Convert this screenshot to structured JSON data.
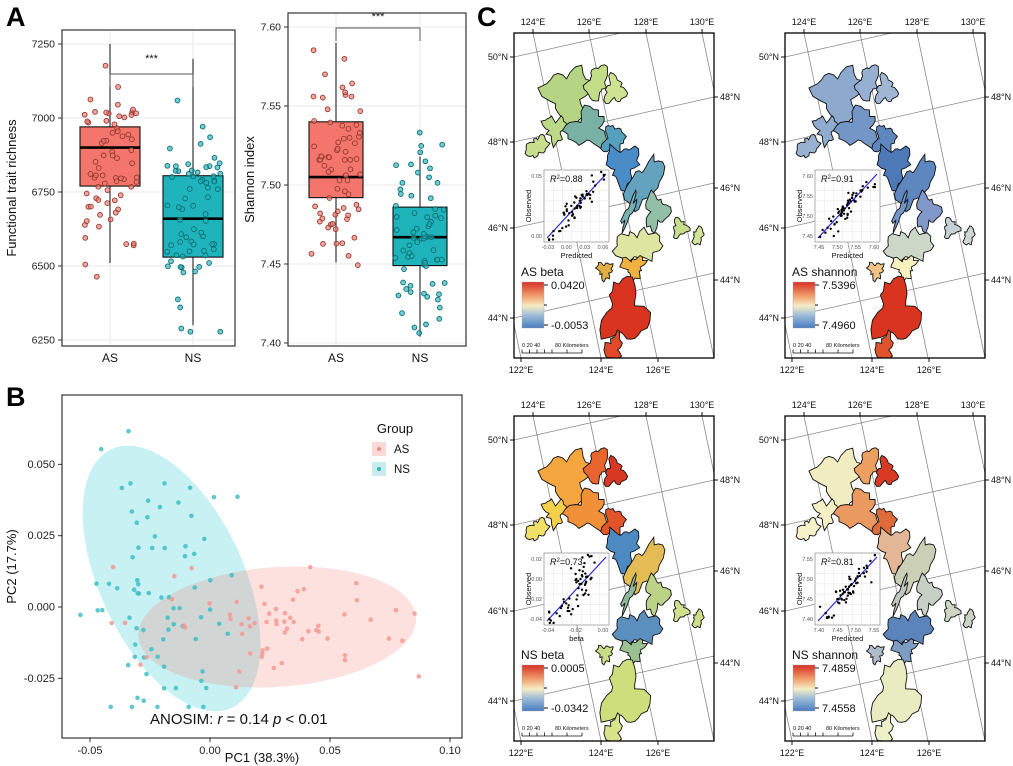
{
  "panel_labels": {
    "a": "A",
    "b": "B",
    "c": "C"
  },
  "colors": {
    "as_fill": "#f4756c",
    "as_point": "#8f3a30",
    "ns_fill": "#1fb4bb",
    "ns_point": "#0d6b70",
    "as_light": "#fbd9d6",
    "ns_light": "#c8ecee",
    "as_dot": "#f48a82",
    "ns_dot": "#2fb8be",
    "ellipse_as": "rgba(248,118,109,0.22)",
    "ellipse_ns": "rgba(0,191,196,0.22)",
    "grid": "#e9e9e9",
    "frame": "#333333",
    "graticule": "#8a8a8a",
    "map_gradient": [
      "#d73027",
      "#f09d6b",
      "#f5eec6",
      "#9fbdd8",
      "#4a7cbf"
    ],
    "inset_line": "#2626e0",
    "inset_point": "#000000"
  },
  "chart_data": {
    "boxplots": [
      {
        "ylabel": "Functional trait richness",
        "yticks": [
          "6250",
          "6500",
          "6750",
          "7000",
          "7250"
        ],
        "significance": "***",
        "categories": [
          "AS",
          "NS"
        ],
        "groups": [
          {
            "label": "AS",
            "stats": {
              "whisker_low": 6510,
              "q1": 6770,
              "median": 6900,
              "q3": 6970,
              "whisker_high": 7250
            },
            "jitter": {
              "n": 70,
              "mean": 6855,
              "sd": 165,
              "clamp": [
                6435,
                7255
              ],
              "seed": 101
            }
          },
          {
            "label": "NS",
            "stats": {
              "whisker_low": 6300,
              "q1": 6530,
              "median": 6660,
              "q3": 6805,
              "whisker_high": 7200
            },
            "jitter": {
              "n": 70,
              "mean": 6655,
              "sd": 205,
              "clamp": [
                6278,
                7205
              ],
              "seed": 202
            }
          }
        ]
      },
      {
        "ylabel": "Shannon index",
        "yticks": [
          "7.40",
          "7.45",
          "7.50",
          "7.55",
          "7.60"
        ],
        "significance": "***",
        "categories": [
          "AS",
          "NS"
        ],
        "groups": [
          {
            "label": "AS",
            "stats": {
              "whisker_low": 7.451,
              "q1": 7.492,
              "median": 7.505,
              "q3": 7.54,
              "whisker_high": 7.59
            },
            "jitter": {
              "n": 70,
              "mean": 7.513,
              "sd": 0.038,
              "clamp": [
                7.449,
                7.592
              ],
              "seed": 303
            }
          },
          {
            "label": "NS",
            "stats": {
              "whisker_low": 7.404,
              "q1": 7.449,
              "median": 7.467,
              "q3": 7.486,
              "whisker_high": 7.518
            },
            "jitter": {
              "n": 70,
              "mean": 7.468,
              "sd": 0.029,
              "clamp": [
                7.403,
                7.549
              ],
              "seed": 404
            }
          }
        ]
      }
    ],
    "pca": {
      "xlabel": "PC1 (38.3%)",
      "ylabel": "PC2 (17.7%)",
      "xticks": [
        "-0.05",
        "0.00",
        "0.05",
        "0.10"
      ],
      "yticks": [
        "-0.025",
        "0.000",
        "0.025",
        "0.050"
      ],
      "annotation": {
        "prefix": "ANOSIM:",
        "r_label": "r",
        "r_value": " = 0.14",
        "p_label": "p",
        "p_value": " < 0.01"
      },
      "legend": {
        "title": "Group",
        "items": [
          {
            "label": "AS"
          },
          {
            "label": "NS"
          }
        ]
      },
      "ellipses": [
        {
          "group": "NS",
          "cx": -0.016,
          "cy": 0.01,
          "rx": 0.03,
          "ry": 0.05,
          "rot": -25
        },
        {
          "group": "AS",
          "cx": 0.028,
          "cy": -0.007,
          "rx": 0.058,
          "ry": 0.021,
          "rot": -4
        }
      ],
      "clusters": [
        {
          "group": "NS",
          "n": 76,
          "cx": -0.021,
          "cy": 0.008,
          "sdx": 0.015,
          "sdy": 0.026,
          "clampx": [
            -0.054,
            0.034
          ],
          "clampy": [
            -0.035,
            0.068
          ],
          "seed": 777
        },
        {
          "group": "AS",
          "n": 62,
          "cx": 0.028,
          "cy": -0.007,
          "sdx": 0.027,
          "sdy": 0.01,
          "clampx": [
            -0.041,
            0.095
          ],
          "clampy": [
            -0.04,
            0.014
          ],
          "seed": 888
        }
      ]
    },
    "maps": {
      "common": {
        "top_labels": [
          "124°E",
          "126°E",
          "128°E",
          "130°E"
        ],
        "left_labels": [
          "50°N",
          "48°N",
          "46°N",
          "44°N"
        ],
        "right_labels": [
          "48°N",
          "46°N",
          "44°N"
        ],
        "bottom_labels": [
          "122°E",
          "124°E",
          "126°E"
        ],
        "scalebar": {
          "left_text": "0 20 40",
          "right_text": "80 Kilometers"
        },
        "inset_ylabel": "Observed"
      },
      "items": [
        {
          "name": "as-beta",
          "legend": {
            "title": "AS beta",
            "max": "0.0420",
            "min": "-0.0053"
          },
          "r2": "0.88",
          "inset": {
            "xlabel": "Predicted",
            "xticks": [
              "-0.03",
              "0.00",
              "0.03",
              "0.06"
            ],
            "yticks": [
              "0.00",
              "0.05"
            ],
            "noise": 0.1,
            "seed": 31
          },
          "region_colors": [
            "#b5d584",
            "#c3dc87",
            "#cfe292",
            "#bcd987",
            "#c8de8d",
            "#79b2a4",
            "#55a0bd",
            "#4a8cc7",
            "#63a3bd",
            "#79b0b0",
            "#93bfa6",
            "#c6dd8f",
            "#d2e497",
            "#dde6a0",
            "#f0b23f",
            "#e3ae44",
            "#d93420",
            "#e1492a"
          ]
        },
        {
          "name": "as-shannon",
          "legend": {
            "title": "AS shannon",
            "max": "7.5396",
            "min": "7.4960"
          },
          "r2": "0.91",
          "inset": {
            "xlabel": "Predicted",
            "xticks": [
              "7.45",
              "7.50",
              "7.55",
              "7.60"
            ],
            "yticks": [
              "7.45",
              "7.50",
              "7.55",
              "7.60"
            ],
            "noise": 0.08,
            "seed": 32
          },
          "region_colors": [
            "#8ea9ce",
            "#96b0d1",
            "#9fb7d5",
            "#90abd0",
            "#99b2d2",
            "#7396c7",
            "#5f87bf",
            "#4e79b9",
            "#5f87bf",
            "#7396c7",
            "#8099ca",
            "#c6d1d5",
            "#ced8d3",
            "#ccd7c7",
            "#f7f1c0",
            "#f0c285",
            "#d93420",
            "#e0532c"
          ]
        },
        {
          "name": "ns-beta",
          "legend": {
            "title": "NS beta",
            "max": "0.0005",
            "min": "-0.0342"
          },
          "r2": "0.73",
          "inset": {
            "xlabel": "beta",
            "xticks": [
              "-0.04",
              "-0.02",
              "0.00"
            ],
            "yticks": [
              "-0.04",
              "-0.02",
              "0.00",
              "0.02"
            ],
            "noise": 0.16,
            "seed": 33
          },
          "region_colors": [
            "#f6a63e",
            "#e8652e",
            "#d83722",
            "#f3cf4c",
            "#f1e068",
            "#f09038",
            "#e2542a",
            "#4d8ac2",
            "#e4bc55",
            "#8fb89a",
            "#bcd286",
            "#cfdf8b",
            "#cbde87",
            "#5a8fbe",
            "#9cc190",
            "#c9db84",
            "#cede7d",
            "#d8e38a"
          ]
        },
        {
          "name": "ns-shannon",
          "legend": {
            "title": "NS shannon",
            "max": "7.4859",
            "min": "7.4558"
          },
          "r2": "0.81",
          "inset": {
            "xlabel": "Predicted",
            "xticks": [
              "7.40",
              "7.45",
              "7.50",
              "7.55"
            ],
            "yticks": [
              "7.40",
              "7.45",
              "7.50",
              "7.55"
            ],
            "noise": 0.11,
            "seed": 34
          },
          "region_colors": [
            "#f1edc0",
            "#ec9f5f",
            "#d93a24",
            "#f3f0c4",
            "#f5f1c8",
            "#ea9a60",
            "#e06b3a",
            "#e3b795",
            "#cbcfb5",
            "#bec7bd",
            "#c7d0c5",
            "#ced5c3",
            "#cad3c1",
            "#5b84bb",
            "#7d9dc5",
            "#aebbca",
            "#e9ecc1",
            "#eef0c8"
          ]
        }
      ]
    }
  }
}
